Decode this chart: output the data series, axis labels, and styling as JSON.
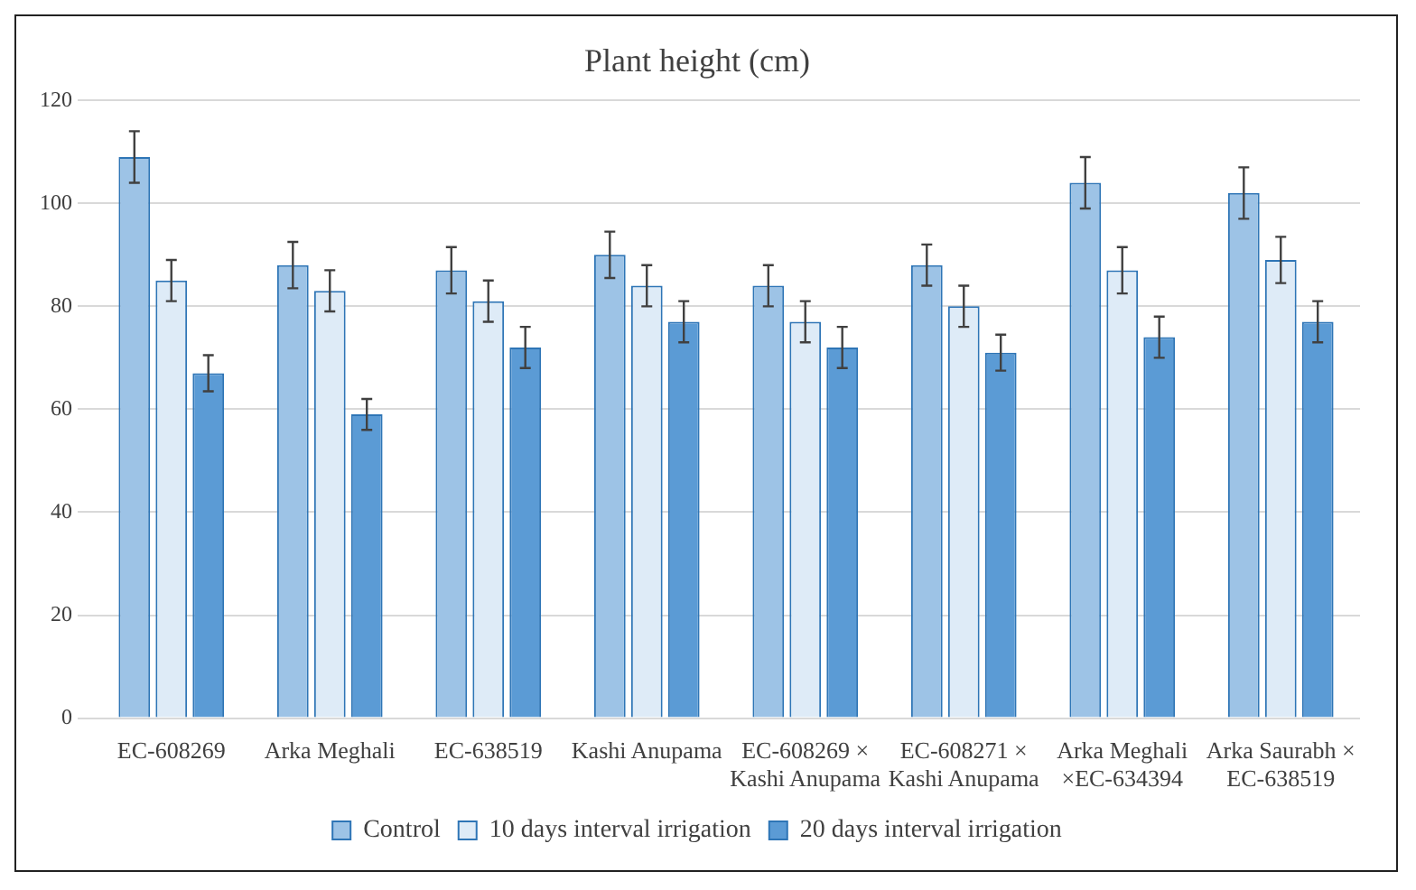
{
  "chart_data": {
    "type": "bar",
    "title": "Plant height (cm)",
    "categories": [
      "EC-608269",
      "Arka Meghali",
      "EC-638519",
      "Kashi Anupama",
      "EC-608269 × Kashi Anupama",
      "EC-608271 × Kashi Anupama",
      "Arka Meghali ×EC-634394",
      "Arka Saurabh × EC-638519"
    ],
    "series": [
      {
        "name": "Control",
        "color": "#9dc3e6",
        "values": [
          109,
          88,
          87,
          90,
          84,
          88,
          104,
          102
        ],
        "errors": [
          5,
          4.5,
          4.5,
          4.5,
          4,
          4,
          5,
          5
        ]
      },
      {
        "name": "10 days interval irrigation",
        "color": "#deebf7",
        "values": [
          85,
          83,
          81,
          84,
          77,
          80,
          87,
          89
        ],
        "errors": [
          4,
          4,
          4,
          4,
          4,
          4,
          4.5,
          4.5
        ]
      },
      {
        "name": "20 days interval irrigation",
        "color": "#5b9bd5",
        "values": [
          67,
          59,
          72,
          77,
          72,
          71,
          74,
          77
        ],
        "errors": [
          3.5,
          3,
          4,
          4,
          4,
          3.5,
          4,
          4
        ]
      }
    ],
    "ylim": [
      0,
      120
    ],
    "yticks": [
      0,
      20,
      40,
      60,
      80,
      100,
      120
    ],
    "grid": "y",
    "legend": "bottom"
  }
}
